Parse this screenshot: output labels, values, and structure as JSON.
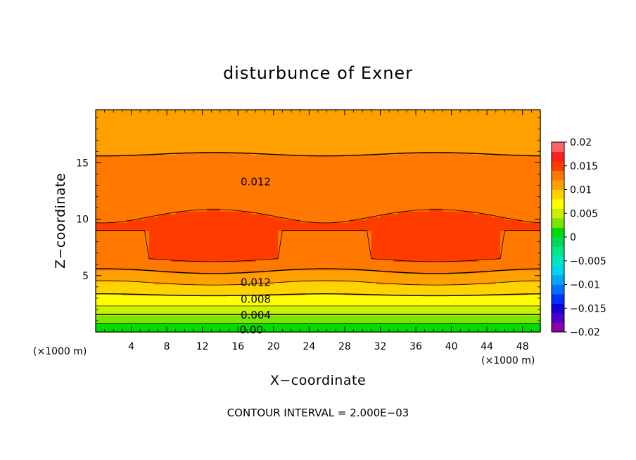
{
  "chart_data": {
    "type": "contour",
    "title": "disturbunce of Exner",
    "xlabel": "X−coordinate",
    "ylabel": "Z−coordinate",
    "x_unit": "(×1000 m)",
    "xlim": [
      0,
      50
    ],
    "ylim": [
      0,
      19.7
    ],
    "x_ticks": [
      4,
      8,
      12,
      16,
      20,
      24,
      28,
      32,
      36,
      40,
      44,
      48
    ],
    "y_ticks": [
      5,
      10,
      15
    ],
    "contour_interval": 0.002,
    "footer": "CONTOUR INTERVAL = 2.000E−03",
    "colorbar": {
      "ticks": [
        "0.02",
        "0.015",
        "0.01",
        "0.005",
        "0",
        "−0.005",
        "−0.01",
        "−0.015",
        "−0.02"
      ],
      "levels": [
        -0.02,
        -0.018,
        -0.016,
        -0.014,
        -0.012,
        -0.01,
        -0.008,
        -0.006,
        -0.004,
        -0.002,
        0,
        0.002,
        0.004,
        0.006,
        0.008,
        0.01,
        0.012,
        0.014,
        0.016,
        0.018,
        0.02
      ],
      "colors": [
        "#8a00a8",
        "#4b00c8",
        "#1000d8",
        "#0030ff",
        "#0070ff",
        "#00a8ff",
        "#00d2f0",
        "#00e6be",
        "#00e68c",
        "#00d75a",
        "#00dc00",
        "#78e600",
        "#c8f000",
        "#ffff00",
        "#ffd200",
        "#ffa000",
        "#ff7800",
        "#ff3c00",
        "#ff2020",
        "#ff6464"
      ]
    },
    "contour_labels": [
      {
        "text": "0.012",
        "x": 18,
        "z": 13.3
      },
      {
        "text": "0.012",
        "x": 18,
        "z": 4.4
      },
      {
        "text": "0.008",
        "x": 18,
        "z": 2.9
      },
      {
        "text": "0.004",
        "x": 18,
        "z": 1.5
      },
      {
        "text": "0.00",
        "x": 17.5,
        "z": 0.2
      }
    ]
  }
}
